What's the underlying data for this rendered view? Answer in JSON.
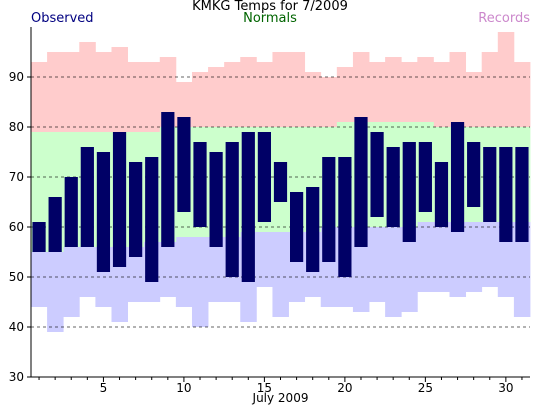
{
  "chart_data": {
    "type": "bar",
    "title": "KMKG Temps for 7/2009",
    "xlabel": "July 2009",
    "ylabel": "",
    "xlim": [
      0.5,
      31.5
    ],
    "ylim": [
      30,
      100
    ],
    "yticks": [
      30,
      40,
      50,
      60,
      70,
      80,
      90
    ],
    "xticks": [
      5,
      10,
      15,
      20,
      25,
      30
    ],
    "grid": "horizontal dashed",
    "legend": {
      "observed": "Observed",
      "normals": "Normals",
      "records": "Records"
    },
    "colors": {
      "observed": "#000066",
      "normals": "#ccffcc",
      "records_high": "#ffcccc",
      "records_low": "#ccccff",
      "observed_label": "#000080",
      "normals_label": "#006400",
      "records_label": "#cc88cc"
    },
    "days": [
      1,
      2,
      3,
      4,
      5,
      6,
      7,
      8,
      9,
      10,
      11,
      12,
      13,
      14,
      15,
      16,
      17,
      18,
      19,
      20,
      21,
      22,
      23,
      24,
      25,
      26,
      27,
      28,
      29,
      30,
      31
    ],
    "record_high": [
      93,
      95,
      95,
      97,
      95,
      96,
      93,
      93,
      94,
      89,
      91,
      92,
      93,
      94,
      93,
      95,
      95,
      91,
      90,
      92,
      95,
      93,
      94,
      93,
      94,
      93,
      95,
      91,
      95,
      99,
      93
    ],
    "normal_high": [
      79,
      79,
      79,
      79,
      79,
      79,
      79,
      79,
      80,
      80,
      80,
      80,
      80,
      80,
      80,
      80,
      80,
      80,
      80,
      81,
      81,
      81,
      81,
      81,
      81,
      80,
      80,
      80,
      80,
      80,
      80
    ],
    "normal_low": [
      55,
      55,
      56,
      56,
      56,
      56,
      56,
      57,
      57,
      58,
      58,
      58,
      58,
      59,
      59,
      59,
      59,
      59,
      60,
      60,
      60,
      60,
      60,
      60,
      61,
      61,
      61,
      61,
      61,
      61,
      61
    ],
    "record_low": [
      44,
      39,
      42,
      46,
      44,
      41,
      45,
      45,
      46,
      44,
      40,
      45,
      45,
      41,
      48,
      42,
      45,
      46,
      44,
      44,
      43,
      45,
      42,
      43,
      47,
      47,
      46,
      47,
      48,
      46,
      42
    ],
    "observed_high": [
      61,
      66,
      70,
      76,
      75,
      79,
      73,
      74,
      83,
      82,
      77,
      75,
      77,
      79,
      79,
      73,
      67,
      68,
      74,
      74,
      82,
      79,
      76,
      77,
      77,
      73,
      81,
      77,
      76,
      76,
      76
    ],
    "observed_low": [
      55,
      55,
      56,
      56,
      51,
      52,
      54,
      49,
      56,
      63,
      60,
      56,
      50,
      49,
      61,
      65,
      53,
      51,
      53,
      50,
      56,
      62,
      60,
      57,
      63,
      60,
      59,
      64,
      61,
      57,
      57
    ]
  }
}
